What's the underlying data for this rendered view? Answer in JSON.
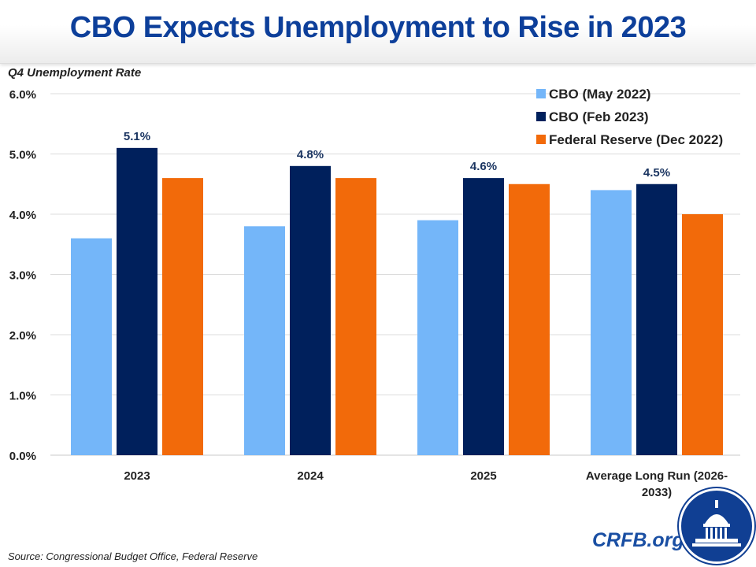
{
  "chart_data": {
    "type": "bar",
    "title": "CBO Expects Unemployment to Rise in 2023",
    "ylabel": "Q4 Unemployment Rate",
    "categories": [
      "2023",
      "2024",
      "2025",
      "Average Long Run (2026-2033)"
    ],
    "category_lines": [
      [
        "2023"
      ],
      [
        "2024"
      ],
      [
        "2025"
      ],
      [
        "Average Long Run (2026-",
        "2033)"
      ]
    ],
    "ylim": [
      0,
      6
    ],
    "yticks": [
      "0.0%",
      "1.0%",
      "2.0%",
      "3.0%",
      "4.0%",
      "5.0%",
      "6.0%"
    ],
    "grid": true,
    "legend_placement": "top-right",
    "series": [
      {
        "name": "CBO (May 2022)",
        "color": "#74b6f9",
        "values": [
          3.6,
          3.8,
          3.9,
          4.4
        ]
      },
      {
        "name": "CBO (Feb 2023)",
        "color": "#00205c",
        "values": [
          5.1,
          4.8,
          4.6,
          4.5
        ],
        "labels": [
          "5.1%",
          "4.8%",
          "4.6%",
          "4.5%"
        ]
      },
      {
        "name": "Federal Reserve (Dec 2022)",
        "color": "#f26a0a",
        "values": [
          4.6,
          4.6,
          4.5,
          4.0
        ]
      }
    ]
  },
  "source": "Source: Congressional  Budget Office, Federal Reserve",
  "brand": "CRFB.org"
}
